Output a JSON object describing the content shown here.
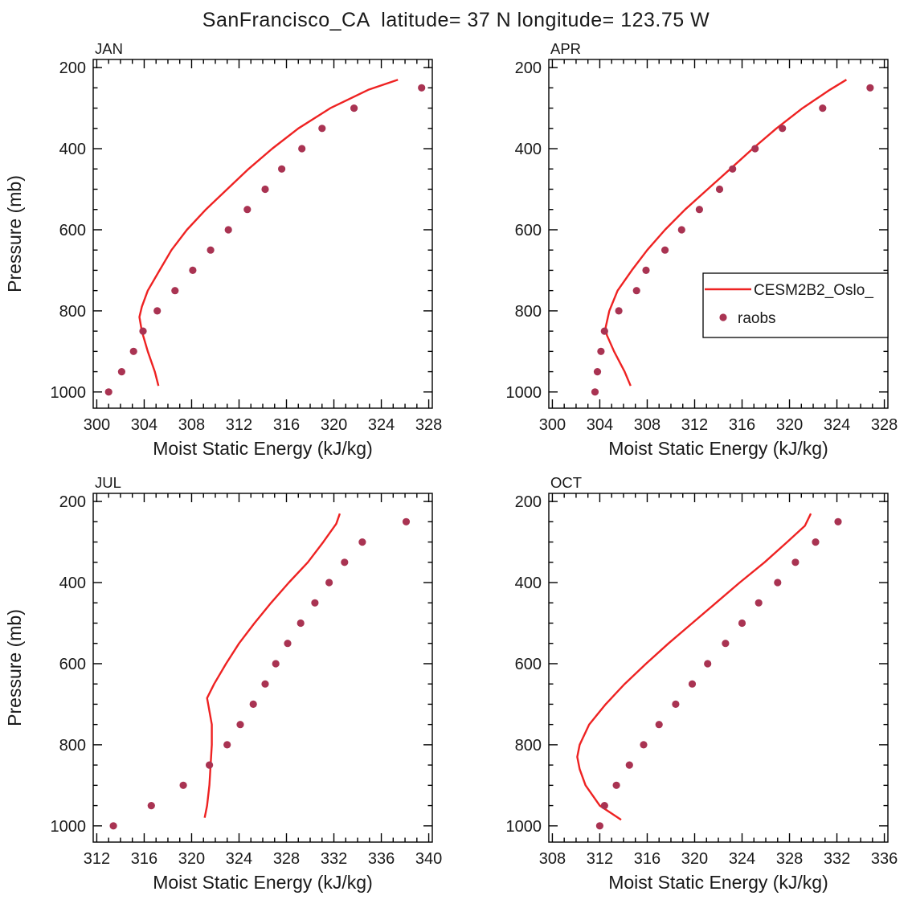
{
  "title": "SanFrancisco_CA  latitude= 37 N longitude= 123.75 W",
  "xlabel": "Moist Static Energy (kJ/kg)",
  "ylabel": "Pressure (mb)",
  "legend": {
    "entries": [
      {
        "label": "CESM2B2_Oslo_",
        "marker": "line"
      },
      {
        "label": "raobs",
        "marker": "dot"
      }
    ]
  },
  "colors": {
    "model_line": "#ee2222",
    "obs_dot": "#a93352",
    "axis": "#000000",
    "text": "#1a1a1a"
  },
  "chart_data": [
    {
      "type": "line",
      "panel": "JAN",
      "show_ylabel": true,
      "legend": false,
      "xlim": [
        299.7,
        328.3
      ],
      "x_ticks": [
        300,
        304,
        308,
        312,
        316,
        320,
        324,
        328
      ],
      "x_minor_step": 1,
      "ylim": [
        180,
        1040
      ],
      "y_reversed": true,
      "y_ticks": [
        200,
        400,
        600,
        800,
        1000
      ],
      "y_minor_step": 50,
      "series": [
        {
          "name": "CESM2B2_Oslo_",
          "kind": "line",
          "points": [
            [
              305.2,
              985
            ],
            [
              304.9,
              950
            ],
            [
              304.3,
              900
            ],
            [
              303.8,
              850
            ],
            [
              303.6,
              815
            ],
            [
              303.8,
              790
            ],
            [
              304.3,
              750
            ],
            [
              305.3,
              700
            ],
            [
              306.3,
              650
            ],
            [
              307.6,
              600
            ],
            [
              309.2,
              550
            ],
            [
              311.0,
              500
            ],
            [
              312.8,
              450
            ],
            [
              314.8,
              400
            ],
            [
              317.0,
              350
            ],
            [
              319.7,
              300
            ],
            [
              322.9,
              255
            ],
            [
              325.4,
              230
            ]
          ]
        },
        {
          "name": "raobs",
          "kind": "scatter",
          "points": [
            [
              301.0,
              1000
            ],
            [
              302.1,
              950
            ],
            [
              303.1,
              900
            ],
            [
              303.9,
              850
            ],
            [
              305.1,
              800
            ],
            [
              306.6,
              750
            ],
            [
              308.1,
              700
            ],
            [
              309.6,
              650
            ],
            [
              311.1,
              600
            ],
            [
              312.7,
              550
            ],
            [
              314.2,
              500
            ],
            [
              315.6,
              450
            ],
            [
              317.3,
              400
            ],
            [
              319.0,
              350
            ],
            [
              321.7,
              300
            ],
            [
              327.4,
              250
            ]
          ]
        }
      ]
    },
    {
      "type": "line",
      "panel": "APR",
      "show_ylabel": false,
      "legend": true,
      "xlim": [
        299.7,
        328.3
      ],
      "x_ticks": [
        300,
        304,
        308,
        312,
        316,
        320,
        324,
        328
      ],
      "x_minor_step": 1,
      "ylim": [
        180,
        1040
      ],
      "y_reversed": true,
      "y_ticks": [
        200,
        400,
        600,
        800,
        1000
      ],
      "y_minor_step": 50,
      "series": [
        {
          "name": "CESM2B2_Oslo_",
          "kind": "line",
          "points": [
            [
              306.6,
              985
            ],
            [
              306.1,
              950
            ],
            [
              305.2,
              900
            ],
            [
              304.6,
              860
            ],
            [
              304.5,
              840
            ],
            [
              304.8,
              800
            ],
            [
              305.5,
              750
            ],
            [
              306.7,
              700
            ],
            [
              308.0,
              650
            ],
            [
              309.5,
              600
            ],
            [
              311.2,
              550
            ],
            [
              313.1,
              500
            ],
            [
              315.0,
              450
            ],
            [
              316.9,
              400
            ],
            [
              318.9,
              350
            ],
            [
              321.1,
              300
            ],
            [
              323.4,
              255
            ],
            [
              324.8,
              230
            ]
          ]
        },
        {
          "name": "raobs",
          "kind": "scatter",
          "points": [
            [
              303.6,
              1000
            ],
            [
              303.8,
              950
            ],
            [
              304.1,
              900
            ],
            [
              304.4,
              850
            ],
            [
              305.6,
              800
            ],
            [
              307.1,
              750
            ],
            [
              307.9,
              700
            ],
            [
              309.5,
              650
            ],
            [
              310.9,
              600
            ],
            [
              312.4,
              550
            ],
            [
              314.1,
              500
            ],
            [
              315.2,
              450
            ],
            [
              317.1,
              400
            ],
            [
              319.4,
              350
            ],
            [
              322.8,
              300
            ],
            [
              326.8,
              250
            ]
          ]
        }
      ]
    },
    {
      "type": "line",
      "panel": "JUL",
      "show_ylabel": true,
      "legend": false,
      "xlim": [
        311.7,
        340.3
      ],
      "x_ticks": [
        312,
        316,
        320,
        324,
        328,
        332,
        336,
        340
      ],
      "x_minor_step": 1,
      "ylim": [
        180,
        1040
      ],
      "y_reversed": true,
      "y_ticks": [
        200,
        400,
        600,
        800,
        1000
      ],
      "y_minor_step": 50,
      "series": [
        {
          "name": "CESM2B2_Oslo_",
          "kind": "line",
          "points": [
            [
              321.1,
              980
            ],
            [
              321.3,
              950
            ],
            [
              321.5,
              900
            ],
            [
              321.6,
              850
            ],
            [
              321.7,
              800
            ],
            [
              321.7,
              750
            ],
            [
              321.4,
              700
            ],
            [
              321.3,
              685
            ],
            [
              321.9,
              650
            ],
            [
              322.9,
              600
            ],
            [
              324.0,
              550
            ],
            [
              325.3,
              500
            ],
            [
              326.7,
              450
            ],
            [
              328.2,
              400
            ],
            [
              329.8,
              350
            ],
            [
              331.1,
              300
            ],
            [
              332.2,
              255
            ],
            [
              332.5,
              230
            ]
          ]
        },
        {
          "name": "raobs",
          "kind": "scatter",
          "points": [
            [
              313.4,
              1000
            ],
            [
              316.6,
              950
            ],
            [
              319.3,
              900
            ],
            [
              321.5,
              850
            ],
            [
              323.0,
              800
            ],
            [
              324.1,
              750
            ],
            [
              325.2,
              700
            ],
            [
              326.2,
              650
            ],
            [
              327.1,
              600
            ],
            [
              328.1,
              550
            ],
            [
              329.2,
              500
            ],
            [
              330.4,
              450
            ],
            [
              331.6,
              400
            ],
            [
              332.9,
              350
            ],
            [
              334.4,
              300
            ],
            [
              338.1,
              250
            ]
          ]
        }
      ]
    },
    {
      "type": "line",
      "panel": "OCT",
      "show_ylabel": false,
      "legend": false,
      "xlim": [
        307.7,
        336.3
      ],
      "x_ticks": [
        308,
        312,
        316,
        320,
        324,
        328,
        332,
        336
      ],
      "x_minor_step": 1,
      "ylim": [
        180,
        1040
      ],
      "y_reversed": true,
      "y_ticks": [
        200,
        400,
        600,
        800,
        1000
      ],
      "y_minor_step": 50,
      "series": [
        {
          "name": "CESM2B2_Oslo_",
          "kind": "line",
          "points": [
            [
              313.8,
              985
            ],
            [
              312.0,
              950
            ],
            [
              310.8,
              900
            ],
            [
              310.3,
              860
            ],
            [
              310.1,
              830
            ],
            [
              310.3,
              800
            ],
            [
              311.1,
              750
            ],
            [
              312.5,
              700
            ],
            [
              314.1,
              650
            ],
            [
              315.9,
              600
            ],
            [
              317.8,
              550
            ],
            [
              319.8,
              500
            ],
            [
              321.8,
              450
            ],
            [
              323.8,
              400
            ],
            [
              325.9,
              350
            ],
            [
              327.8,
              300
            ],
            [
              329.3,
              260
            ],
            [
              329.8,
              230
            ]
          ]
        },
        {
          "name": "raobs",
          "kind": "scatter",
          "points": [
            [
              312.0,
              1000
            ],
            [
              312.4,
              950
            ],
            [
              313.4,
              900
            ],
            [
              314.5,
              850
            ],
            [
              315.7,
              800
            ],
            [
              317.0,
              750
            ],
            [
              318.4,
              700
            ],
            [
              319.8,
              650
            ],
            [
              321.1,
              600
            ],
            [
              322.6,
              550
            ],
            [
              324.0,
              500
            ],
            [
              325.4,
              450
            ],
            [
              327.0,
              400
            ],
            [
              328.5,
              350
            ],
            [
              330.2,
              300
            ],
            [
              332.1,
              250
            ]
          ]
        }
      ]
    }
  ]
}
